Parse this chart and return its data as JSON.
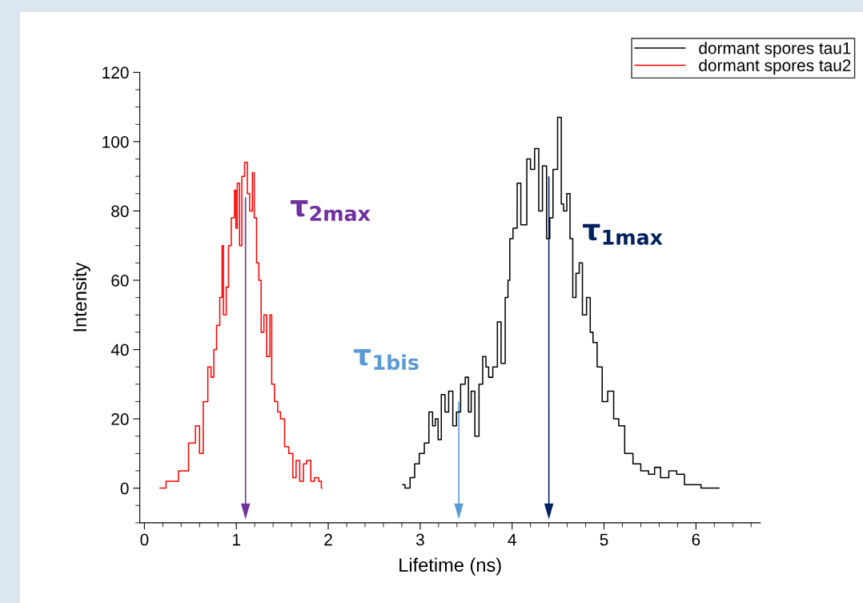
{
  "chart_data": {
    "type": "step",
    "xlabel": "Lifetime (ns)",
    "ylabel": "Intensity",
    "xlim": [
      -0.05,
      6.7
    ],
    "ylim": [
      -10,
      120
    ],
    "xticks": [
      0,
      1,
      2,
      3,
      4,
      5,
      6
    ],
    "yticks": [
      0,
      20,
      40,
      60,
      80,
      100,
      120
    ],
    "grid": false,
    "legend": "top right",
    "marker": "none",
    "line_style": "solid",
    "series": [
      {
        "name": "dormant spores tau1",
        "color": "#000000",
        "x": [
          2.81,
          2.86,
          2.92,
          2.96,
          3.02,
          3.07,
          3.12,
          3.15,
          3.18,
          3.21,
          3.25,
          3.29,
          3.33,
          3.38,
          3.41,
          3.47,
          3.51,
          3.54,
          3.57,
          3.62,
          3.66,
          3.7,
          3.73,
          3.76,
          3.82,
          3.86,
          3.9,
          3.95,
          3.96,
          3.99,
          4.03,
          4.08,
          4.11,
          4.14,
          4.18,
          4.22,
          4.27,
          4.31,
          4.35,
          4.4,
          4.42,
          4.47,
          4.52,
          4.55,
          4.57,
          4.62,
          4.64,
          4.68,
          4.71,
          4.75,
          4.78,
          4.84,
          4.86,
          4.9,
          4.95,
          5.01,
          5.07,
          5.14,
          5.18,
          5.27,
          5.36,
          5.44,
          5.53,
          5.57,
          5.66,
          5.75,
          5.83,
          5.92,
          6.01,
          6.1,
          6.25
        ],
        "values": [
          1,
          0,
          3,
          7,
          10,
          13,
          22,
          18,
          20,
          14,
          27,
          22,
          28,
          18,
          22,
          30,
          32,
          22,
          28,
          15,
          30,
          38,
          35,
          32,
          35,
          48,
          36,
          55,
          60,
          72,
          75,
          88,
          76,
          76,
          95,
          92,
          98,
          80,
          93,
          72,
          78,
          92,
          107,
          82,
          80,
          85,
          72,
          55,
          62,
          65,
          50,
          55,
          45,
          42,
          35,
          25,
          28,
          20,
          18,
          10,
          7,
          5,
          4,
          6,
          3,
          5,
          4,
          1,
          1,
          0,
          0
        ]
      },
      {
        "name": "dormant spores tau2",
        "color": "#ff0000",
        "x": [
          0.17,
          0.3,
          0.44,
          0.52,
          0.59,
          0.61,
          0.67,
          0.71,
          0.74,
          0.77,
          0.8,
          0.84,
          0.85,
          0.87,
          0.91,
          0.92,
          0.97,
          0.99,
          1.0,
          1.02,
          1.05,
          1.07,
          1.11,
          1.13,
          1.16,
          1.19,
          1.2,
          1.24,
          1.25,
          1.29,
          1.31,
          1.35,
          1.38,
          1.39,
          1.44,
          1.46,
          1.5,
          1.55,
          1.59,
          1.64,
          1.66,
          1.72,
          1.74,
          1.79,
          1.83,
          1.87,
          1.92,
          1.93
        ],
        "values": [
          0,
          2,
          5,
          13,
          18,
          10,
          25,
          35,
          32,
          40,
          47,
          55,
          70,
          50,
          58,
          70,
          78,
          86,
          75,
          88,
          70,
          90,
          94,
          85,
          80,
          91,
          78,
          65,
          60,
          45,
          50,
          38,
          50,
          30,
          25,
          22,
          20,
          12,
          10,
          3,
          8,
          2,
          7,
          8,
          2,
          3,
          2,
          0
        ]
      }
    ],
    "annotations": [
      {
        "text": "τ$_{2max}$",
        "x": 1.1,
        "y": 84
      },
      {
        "text": "τ$_{1bis}$",
        "x": 3.42,
        "y": 25
      },
      {
        "text": "τ$_{1max}$",
        "x": 4.4,
        "y": 90
      }
    ]
  }
}
